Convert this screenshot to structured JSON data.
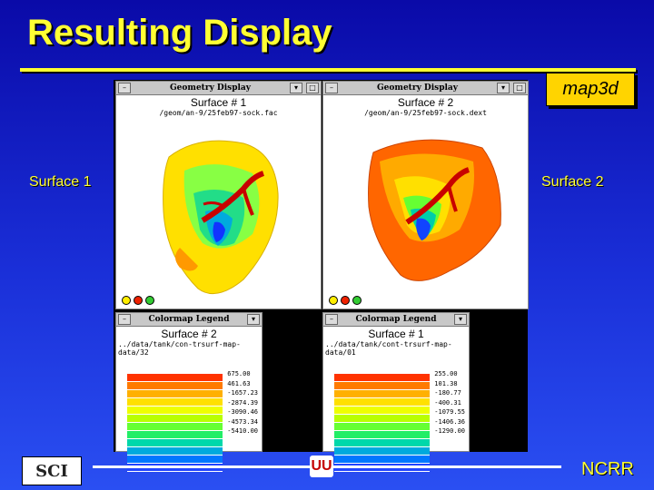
{
  "slide": {
    "title": "Resulting Display",
    "badge": "map3d",
    "left_label": "Surface 1",
    "right_label": "Surface 2",
    "footer_right": "NCRR",
    "footer_logo_left": "SCI",
    "footer_logo_center": "UU"
  },
  "geometry_windows": [
    {
      "window_title": "Geometry Display",
      "surface_title": "Surface # 1",
      "path": "/geom/an-9/25feb97-sock.fac"
    },
    {
      "window_title": "Geometry Display",
      "surface_title": "Surface # 2",
      "path": "/geom/an-9/25feb97-sock.dext"
    }
  ],
  "legend_windows": [
    {
      "window_title": "Colormap Legend",
      "surface_title": "Surface # 2",
      "path": "../data/tank/con-trsurf-map-data/32",
      "values": [
        "675.00",
        "461.63",
        "-1657.23",
        "-2874.39",
        "-3090.46",
        "-4573.34",
        "-5410.00"
      ]
    },
    {
      "window_title": "Colormap Legend",
      "surface_title": "Surface # 1",
      "path": "../data/tank/cont-trsurf-map-data/01",
      "values": [
        "255.00",
        "101.38",
        "-180.77",
        "-400.31",
        "-1079.55",
        "-1406.36",
        "-1290.00"
      ]
    }
  ],
  "colors": {
    "title": "#ffff33",
    "background": "#1a2fd8",
    "badge": "#ffd400",
    "legend_scale": [
      "#ff3300",
      "#ff7a00",
      "#ffb000",
      "#ffe000",
      "#eeff00",
      "#b8ff00",
      "#66ff33",
      "#22ee66",
      "#00d8aa",
      "#00aadd",
      "#0077ff",
      "#2244ff"
    ]
  }
}
